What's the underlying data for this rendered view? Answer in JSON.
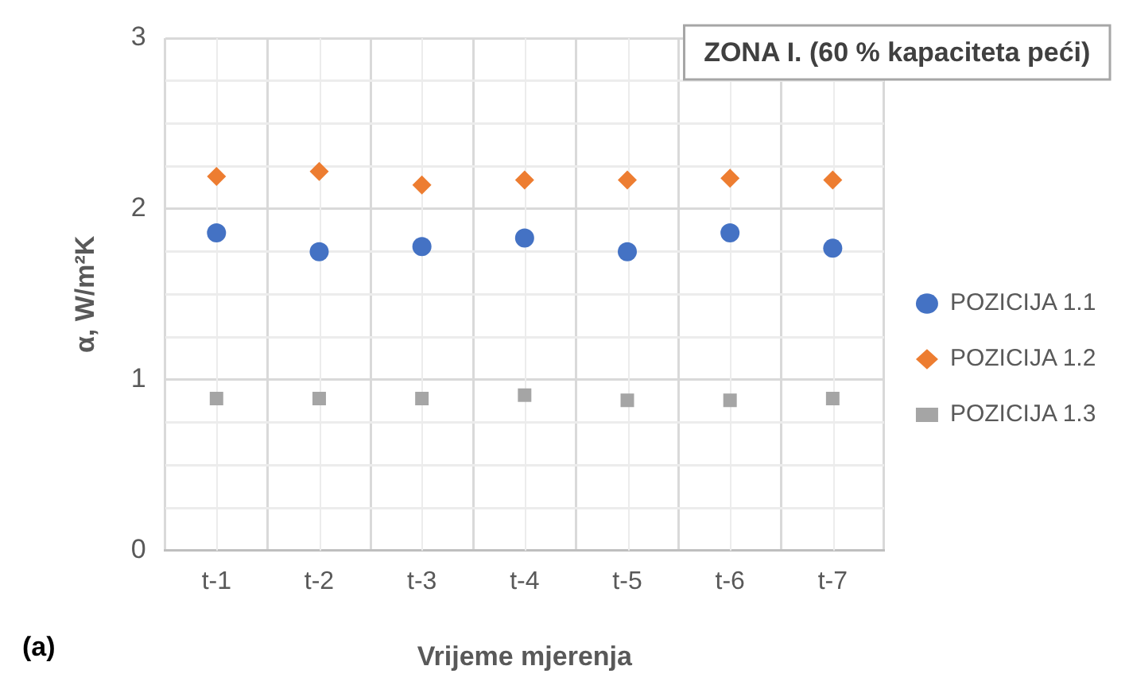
{
  "chart_data": {
    "type": "scatter",
    "title": "ZONA I. (60 % kapaciteta peći)",
    "xlabel": "Vrijeme mjerenja",
    "ylabel": "α, W/m²K",
    "annotations": [
      "(a)"
    ],
    "categories": [
      "t-1",
      "t-2",
      "t-3",
      "t-4",
      "t-5",
      "t-6",
      "t-7"
    ],
    "series": [
      {
        "name": "POZICIJA 1.1",
        "color": "#4472c4",
        "marker": "circle",
        "values": [
          1.86,
          1.75,
          1.78,
          1.83,
          1.75,
          1.86,
          1.77
        ]
      },
      {
        "name": "POZICIJA 1.2",
        "color": "#ed7d31",
        "marker": "diamond",
        "values": [
          2.19,
          2.22,
          2.14,
          2.17,
          2.17,
          2.18,
          2.17
        ]
      },
      {
        "name": "POZICIJA 1.3",
        "color": "#a5a5a5",
        "marker": "square",
        "values": [
          0.89,
          0.89,
          0.89,
          0.91,
          0.88,
          0.88,
          0.89
        ]
      }
    ],
    "ylim": [
      0,
      3
    ],
    "yticks": [
      0,
      {
        "value": 0.25,
        "label": null
      },
      {
        "value": 0.5,
        "label": null
      },
      {
        "value": 0.75,
        "label": null
      },
      1,
      {
        "value": 1.25,
        "label": null
      },
      {
        "value": 1.5,
        "label": null
      },
      {
        "value": 1.75,
        "label": null
      },
      2,
      {
        "value": 2.25,
        "label": null
      },
      {
        "value": 2.5,
        "label": null
      },
      {
        "value": 2.75,
        "label": null
      },
      3
    ],
    "grid": true,
    "legend": "right"
  }
}
